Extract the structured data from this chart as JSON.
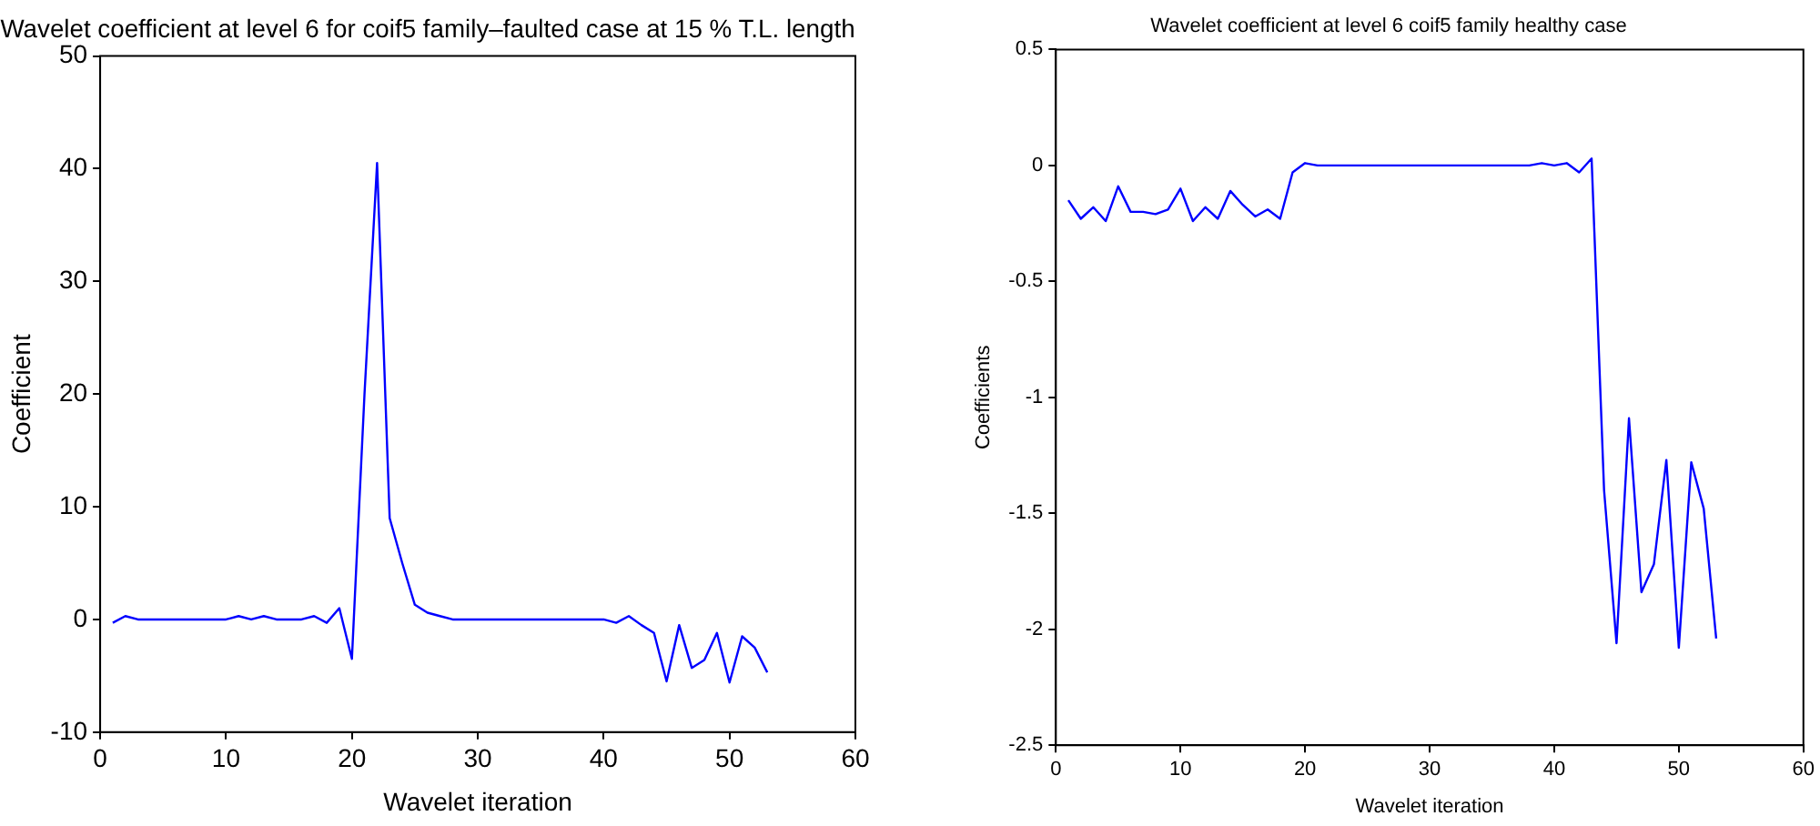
{
  "chart_data": [
    {
      "type": "line",
      "title": "Wavelet coefficient at level 6 for coif5 family–faulted case at 15 % T.L. length",
      "xlabel": "Wavelet iteration",
      "ylabel": "Coefficient",
      "x": [
        1,
        2,
        3,
        4,
        5,
        6,
        7,
        8,
        9,
        10,
        11,
        12,
        13,
        14,
        15,
        16,
        17,
        18,
        19,
        20,
        21,
        22,
        23,
        24,
        25,
        26,
        27,
        28,
        29,
        30,
        31,
        32,
        33,
        34,
        35,
        36,
        37,
        38,
        39,
        40,
        41,
        42,
        43,
        44,
        45,
        46,
        47,
        48,
        49,
        50,
        51,
        52,
        53
      ],
      "series": [
        {
          "color": "#0000ff",
          "values": [
            -0.3,
            0.3,
            0,
            0,
            0,
            0,
            0,
            0,
            0,
            0,
            0.3,
            0,
            0.3,
            0,
            0,
            0,
            0.3,
            -0.3,
            1,
            -3.5,
            20,
            40.5,
            9,
            5,
            1.3,
            0.6,
            0.3,
            0,
            0,
            0,
            0,
            0,
            0,
            0,
            0,
            0,
            0,
            0,
            0,
            0,
            -0.3,
            0.3,
            -0.5,
            -1.2,
            -5.5,
            -0.5,
            -4.3,
            -3.6,
            -1.2,
            -5.6,
            -1.5,
            -2.5,
            -4.7
          ]
        }
      ],
      "xlim": [
        0,
        60
      ],
      "xticks": [
        0,
        10,
        20,
        30,
        40,
        50,
        60
      ],
      "ylim": [
        -10,
        50
      ],
      "yticks": [
        -10,
        0,
        10,
        20,
        30,
        40,
        50
      ],
      "grid": false,
      "legend": false,
      "marker": "none",
      "line_style": "solid"
    },
    {
      "type": "line",
      "title": "Wavelet coefficient at level 6 coif5 family healthy case",
      "xlabel": "Wavelet iteration",
      "ylabel": "Coefficients",
      "x": [
        1,
        2,
        3,
        4,
        5,
        6,
        7,
        8,
        9,
        10,
        11,
        12,
        13,
        14,
        15,
        16,
        17,
        18,
        19,
        20,
        21,
        22,
        23,
        24,
        25,
        26,
        27,
        28,
        29,
        30,
        31,
        32,
        33,
        34,
        35,
        36,
        37,
        38,
        39,
        40,
        41,
        42,
        43,
        44,
        45,
        46,
        47,
        48,
        49,
        50,
        51,
        52,
        53
      ],
      "series": [
        {
          "color": "#0000ff",
          "values": [
            -0.15,
            -0.23,
            -0.18,
            -0.24,
            -0.09,
            -0.2,
            -0.2,
            -0.21,
            -0.19,
            -0.1,
            -0.24,
            -0.18,
            -0.23,
            -0.11,
            -0.17,
            -0.22,
            -0.19,
            -0.23,
            -0.03,
            0.01,
            0,
            0,
            0,
            0,
            0,
            0,
            0,
            0,
            0,
            0,
            0,
            0,
            0,
            0,
            0,
            0,
            0,
            0,
            0.01,
            0,
            0.01,
            -0.03,
            0.03,
            -1.4,
            -2.06,
            -1.09,
            -1.84,
            -1.72,
            -1.27,
            -2.08,
            -1.28,
            -1.48,
            -2.04
          ]
        }
      ],
      "xlim": [
        0,
        60
      ],
      "xticks": [
        0,
        10,
        20,
        30,
        40,
        50,
        60
      ],
      "ylim": [
        -2.5,
        0.5
      ],
      "yticks": [
        -2.5,
        -2,
        -1.5,
        -1,
        -0.5,
        0,
        0.5
      ],
      "grid": false,
      "legend": false,
      "marker": "none",
      "line_style": "solid"
    }
  ]
}
